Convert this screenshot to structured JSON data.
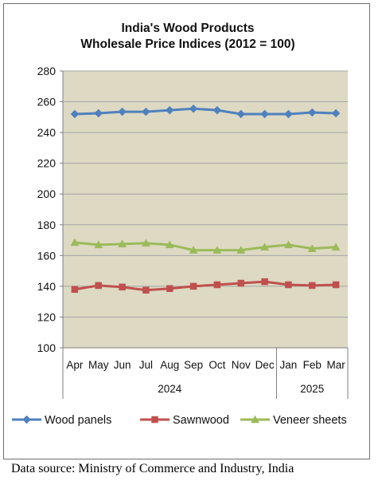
{
  "chart_data": {
    "type": "line",
    "title": [
      "India's Wood Products",
      "Wholesale Price Indices (2012 = 100)"
    ],
    "categories": [
      "Apr",
      "May",
      "Jun",
      "Jul",
      "Aug",
      "Sep",
      "Oct",
      "Nov",
      "Dec",
      "Jan",
      "Feb",
      "Mar"
    ],
    "year_groups": [
      {
        "label": "2024",
        "start": 0,
        "end": 8
      },
      {
        "label": "2025",
        "start": 9,
        "end": 11
      }
    ],
    "ylim": [
      100,
      280
    ],
    "yticks": [
      100,
      120,
      140,
      160,
      180,
      200,
      220,
      240,
      260,
      280
    ],
    "grid": true,
    "legend_position": "bottom",
    "plot_background": "#ddd9c3",
    "series": [
      {
        "name": "Wood panels",
        "color": "#4f81bd",
        "marker": "diamond",
        "values": [
          252.0,
          252.5,
          253.5,
          253.5,
          254.5,
          255.5,
          254.5,
          252.0,
          252.0,
          252.0,
          253.0,
          252.5
        ]
      },
      {
        "name": "Sawnwood",
        "color": "#c0504d",
        "marker": "square",
        "values": [
          138.0,
          140.5,
          139.5,
          137.5,
          138.5,
          140.0,
          141.0,
          142.0,
          143.0,
          141.0,
          140.5,
          141.0
        ]
      },
      {
        "name": "Veneer sheets",
        "color": "#9bbb59",
        "marker": "triangle",
        "values": [
          168.5,
          167.0,
          167.5,
          168.0,
          167.0,
          163.5,
          163.5,
          163.5,
          165.5,
          167.0,
          164.5,
          165.5
        ]
      }
    ]
  },
  "source_text": "Data source: Ministry of Commerce and Industry, India"
}
